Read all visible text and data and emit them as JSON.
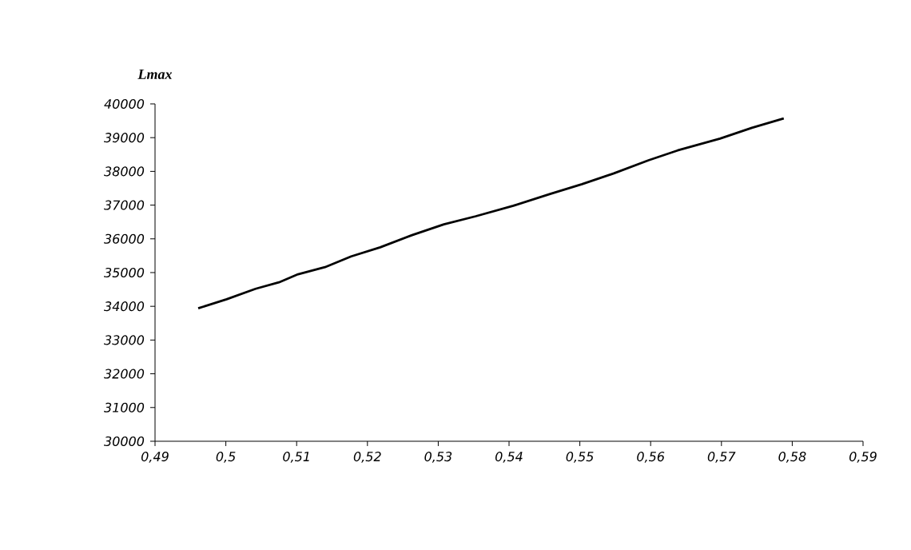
{
  "chart_data": {
    "type": "line",
    "ylabel": "Lmax",
    "x": [
      0.4961,
      0.5001,
      0.5042,
      0.5075,
      0.5102,
      0.514,
      0.5177,
      0.5218,
      0.5263,
      0.5308,
      0.5353,
      0.5406,
      0.5458,
      0.5503,
      0.5548,
      0.5597,
      0.5638,
      0.5698,
      0.5743,
      0.5788
    ],
    "series": [
      {
        "color": "#000000",
        "values": [
          33940,
          34210,
          34520,
          34710,
          34950,
          35160,
          35480,
          35750,
          36110,
          36430,
          36670,
          36980,
          37330,
          37620,
          37940,
          38330,
          38620,
          38970,
          39290,
          39570
        ]
      }
    ],
    "xlim": [
      0.49,
      0.59
    ],
    "xticks": [
      {
        "value": 0.49,
        "label": "0,49"
      },
      {
        "value": 0.5,
        "label": "0,5"
      },
      {
        "value": 0.51,
        "label": "0,51"
      },
      {
        "value": 0.52,
        "label": "0,52"
      },
      {
        "value": 0.53,
        "label": "0,53"
      },
      {
        "value": 0.54,
        "label": "0,54"
      },
      {
        "value": 0.55,
        "label": "0,55"
      },
      {
        "value": 0.56,
        "label": "0,56"
      },
      {
        "value": 0.57,
        "label": "0,57"
      },
      {
        "value": 0.58,
        "label": "0,58"
      },
      {
        "value": 0.59,
        "label": "0,59"
      }
    ],
    "ylim": [
      30000,
      40000
    ],
    "yticks": [
      30000,
      31000,
      32000,
      33000,
      34000,
      35000,
      36000,
      37000,
      38000,
      39000,
      40000
    ],
    "grid": false
  }
}
